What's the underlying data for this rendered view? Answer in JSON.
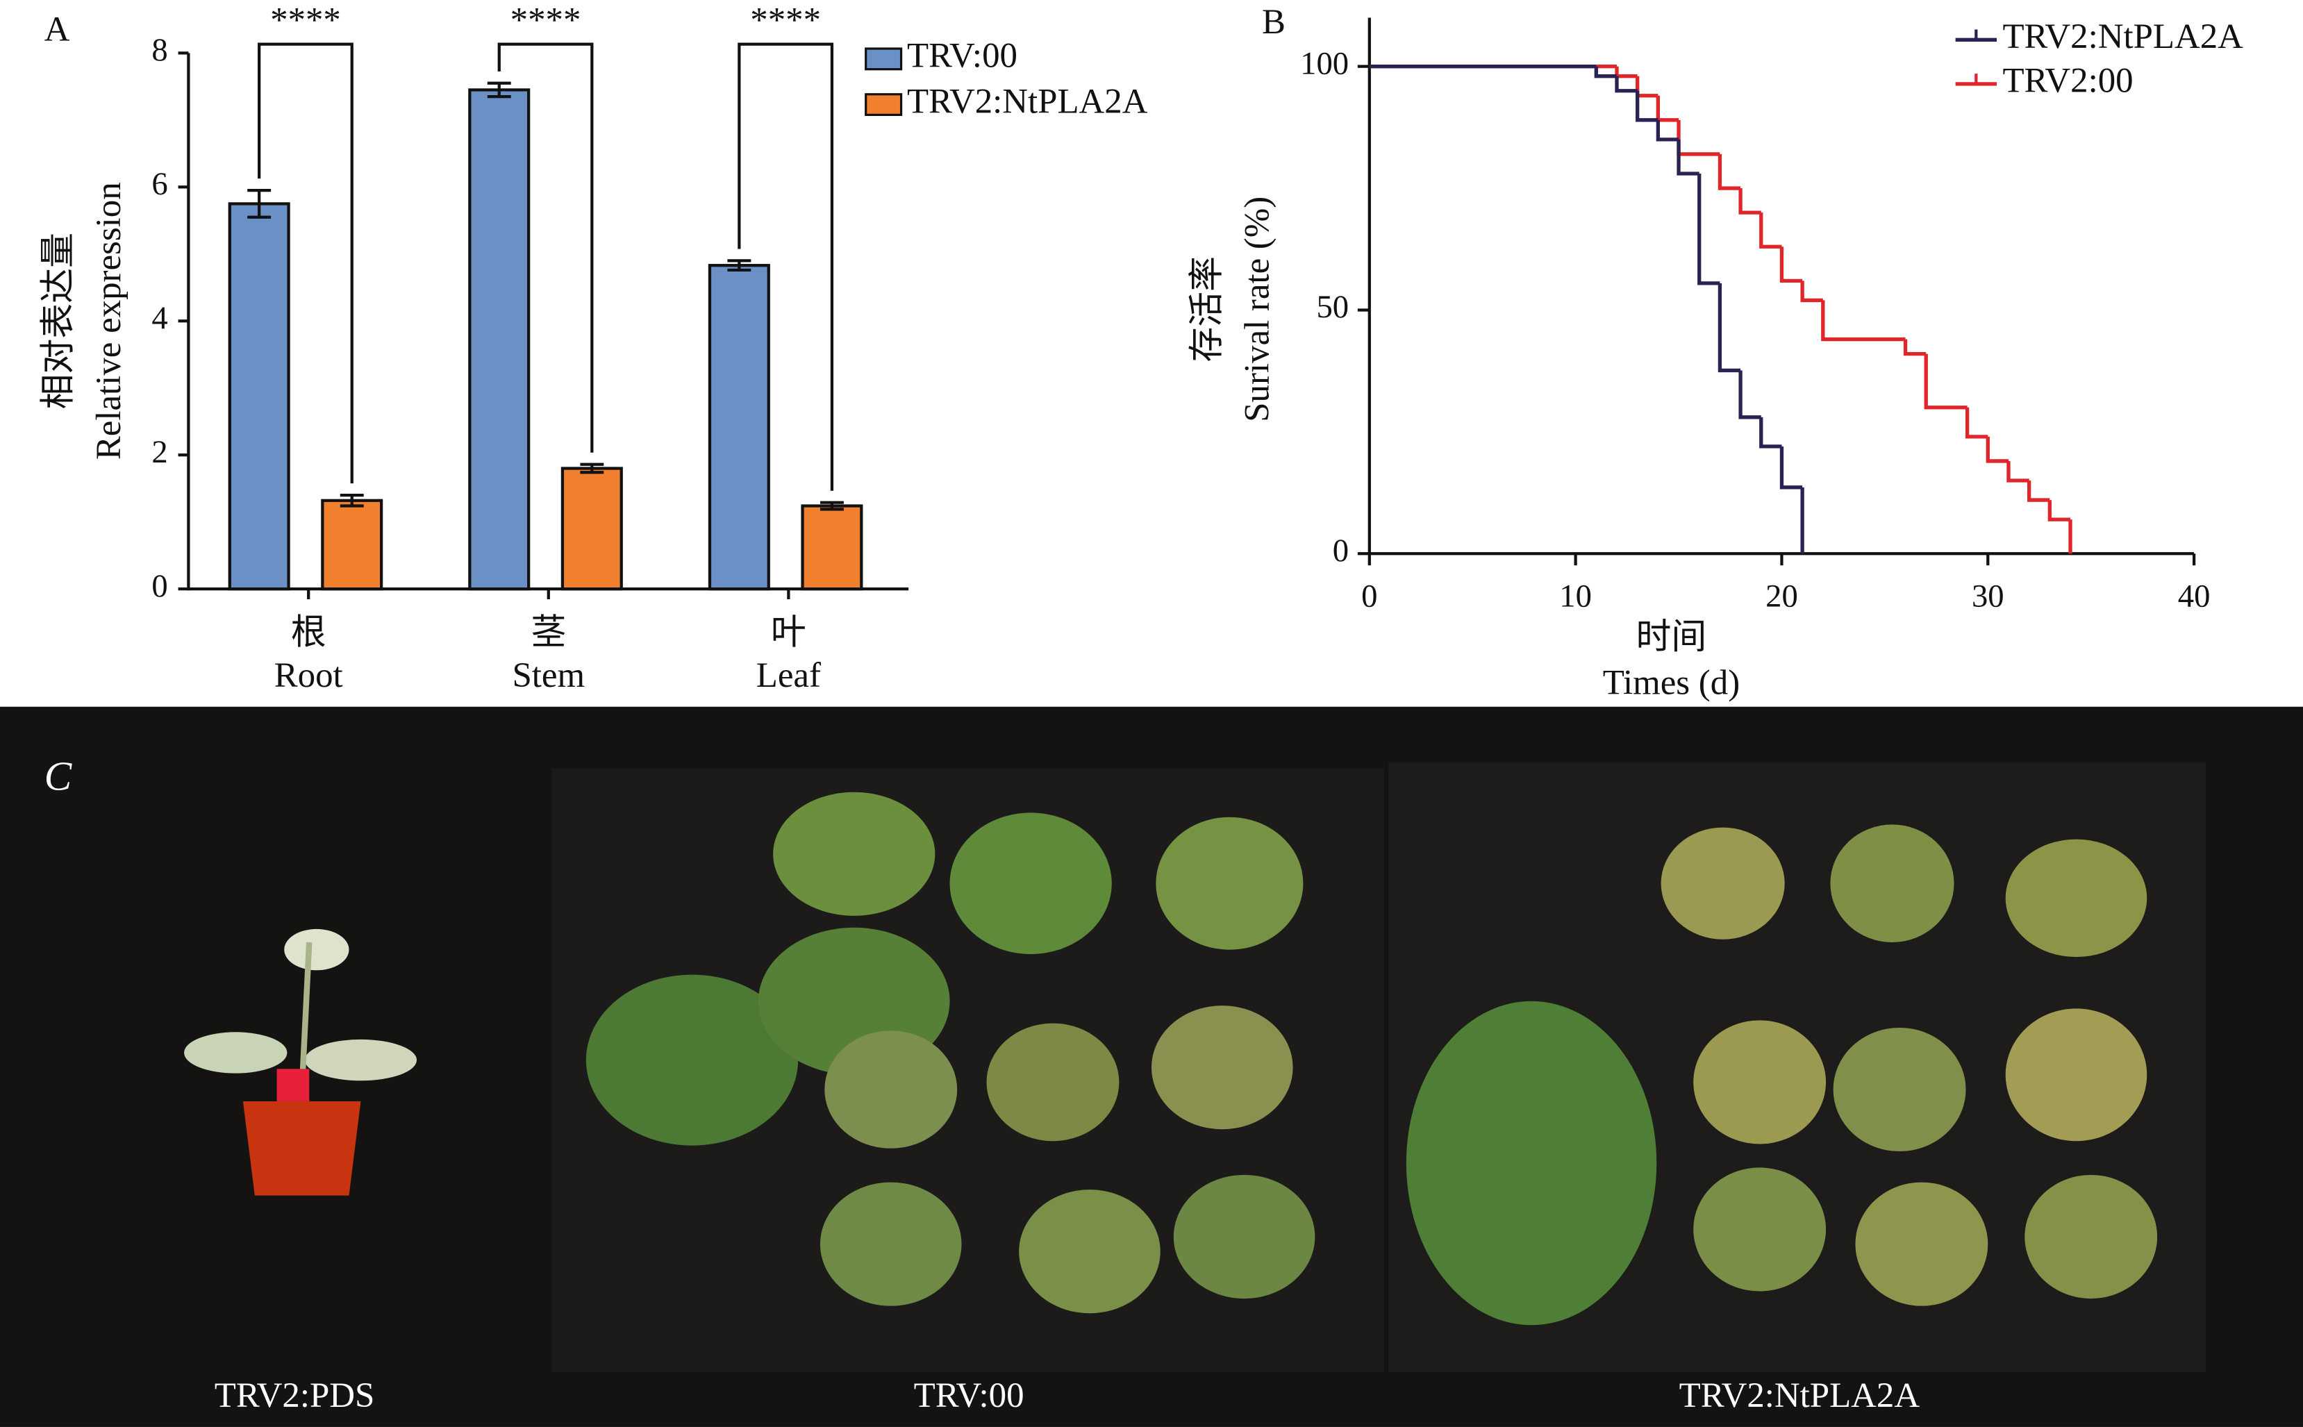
{
  "panel_labels": [
    "A",
    "B",
    "C"
  ],
  "photo_labels": [
    "TRV2:PDS",
    "TRV:00",
    "TRV2:NtPLA2A"
  ],
  "chart_data": [
    {
      "type": "bar",
      "categories": [
        "根",
        "茎",
        "叶"
      ],
      "category_labels_en": [
        "Root",
        "Stem",
        "Leaf"
      ],
      "ylabel": [
        "相对表达量",
        "Relative expression"
      ],
      "ylim": [
        0,
        8
      ],
      "yticks": [
        0,
        2,
        4,
        6,
        8
      ],
      "series": [
        {
          "name": "TRV:00",
          "color": "#6b90c6",
          "values": [
            5.75,
            7.45,
            4.83
          ],
          "errors": [
            0.2,
            0.1,
            0.07
          ]
        },
        {
          "name": "TRV2:NtPLA2A",
          "color": "#f07f2e",
          "values": [
            1.32,
            1.8,
            1.24
          ],
          "errors": [
            0.08,
            0.06,
            0.05
          ]
        }
      ],
      "significance": [
        "****",
        "****",
        "****"
      ]
    },
    {
      "type": "line",
      "drawstyle": "steps-post",
      "xlabel": [
        "时间",
        "Times (d)"
      ],
      "ylabel": [
        "存活率",
        "Surival rate (%)"
      ],
      "xlim": [
        0,
        40
      ],
      "xticks": [
        0,
        10,
        20,
        30,
        40
      ],
      "ylim": [
        0,
        110
      ],
      "yticks": [
        0,
        50,
        100
      ],
      "legend": "upper right",
      "series": [
        {
          "name": "TRV2:NtPLA2A",
          "color": "#2a2252",
          "x": [
            0,
            11,
            12,
            13,
            14,
            15,
            16,
            17,
            18,
            19,
            20,
            21
          ],
          "values": [
            100,
            98,
            95,
            89,
            85,
            78,
            55.5,
            37.6,
            28,
            22,
            13.6,
            0
          ]
        },
        {
          "name": "TRV2:00",
          "color": "#e0262a",
          "x": [
            0,
            12,
            13,
            14,
            15,
            17,
            18,
            19,
            20,
            21,
            22,
            26,
            27,
            29,
            30,
            31,
            32,
            33,
            34
          ],
          "values": [
            100,
            98,
            94,
            89,
            82,
            75,
            70,
            63,
            56,
            52,
            44,
            41,
            30,
            24,
            19,
            15,
            11,
            7,
            0
          ]
        }
      ]
    }
  ]
}
